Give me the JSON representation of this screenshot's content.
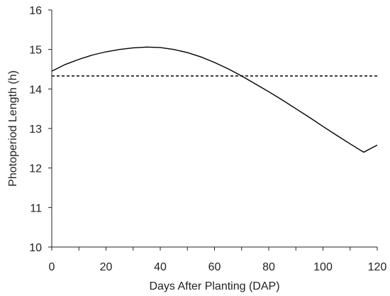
{
  "chart_data": {
    "type": "line",
    "title": "",
    "xlabel": "Days After Planting (DAP)",
    "ylabel": "Photoperiod Length (h)",
    "xlim": [
      0,
      120
    ],
    "ylim": [
      10,
      16
    ],
    "xticks": [
      0,
      20,
      40,
      60,
      80,
      100,
      120
    ],
    "yticks": [
      10,
      11,
      12,
      13,
      14,
      15,
      16
    ],
    "grid": false,
    "series": [
      {
        "style": "solid",
        "color": "#000000",
        "x": [
          0,
          5,
          10,
          15,
          20,
          25,
          30,
          35,
          40,
          45,
          50,
          55,
          60,
          65,
          70,
          75,
          80,
          85,
          90,
          95,
          100,
          105,
          110,
          115,
          120
        ],
        "y": [
          14.45,
          14.62,
          14.75,
          14.86,
          14.94,
          15.0,
          15.04,
          15.06,
          15.05,
          15.0,
          14.92,
          14.81,
          14.67,
          14.51,
          14.33,
          14.13,
          13.93,
          13.72,
          13.5,
          13.28,
          13.05,
          12.83,
          12.61,
          12.4,
          12.58
        ]
      },
      {
        "style": "dashed",
        "color": "#000000",
        "x": [
          0,
          120
        ],
        "y": [
          14.33,
          14.33
        ]
      }
    ]
  }
}
